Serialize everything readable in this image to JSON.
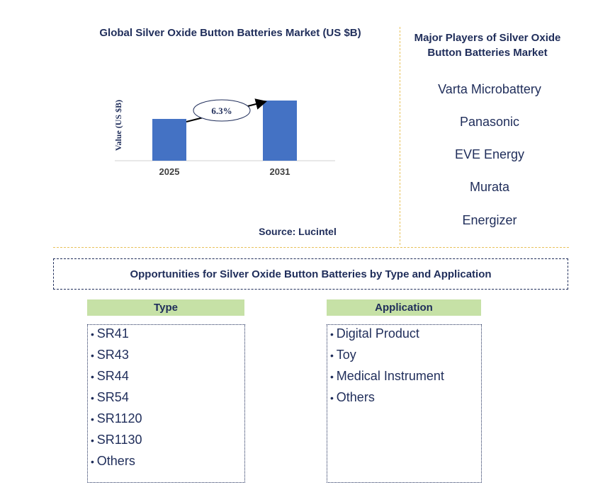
{
  "chart_data": {
    "type": "bar",
    "title": "Global Silver Oxide Button Batteries Market (US $B)",
    "ylabel": "Value (US $B)",
    "xlabel": "",
    "categories": [
      "2025",
      "2031"
    ],
    "values": [
      1.0,
      1.44
    ],
    "growth_annotation": "6.3%",
    "bar_color": "#4472c4",
    "grid": false,
    "source": "Source: Lucintel"
  },
  "players": {
    "title": "Major Players of Silver Oxide Button Batteries Market",
    "items": [
      "Varta Microbattery",
      "Panasonic",
      "EVE Energy",
      "Murata",
      "Energizer"
    ]
  },
  "opportunities": {
    "title": "Opportunities for Silver Oxide Button Batteries by Type and Application",
    "type_header": "Type",
    "types": [
      "SR41",
      "SR43",
      "SR44",
      "SR54",
      "SR1120",
      "SR1130",
      "Others"
    ],
    "application_header": "Application",
    "applications": [
      "Digital Product",
      "Toy",
      "Medical Instrument",
      "Others"
    ]
  },
  "colors": {
    "text": "#1f2d5a",
    "header_bg": "#c6e1a6",
    "divider": "#e8c25a"
  }
}
